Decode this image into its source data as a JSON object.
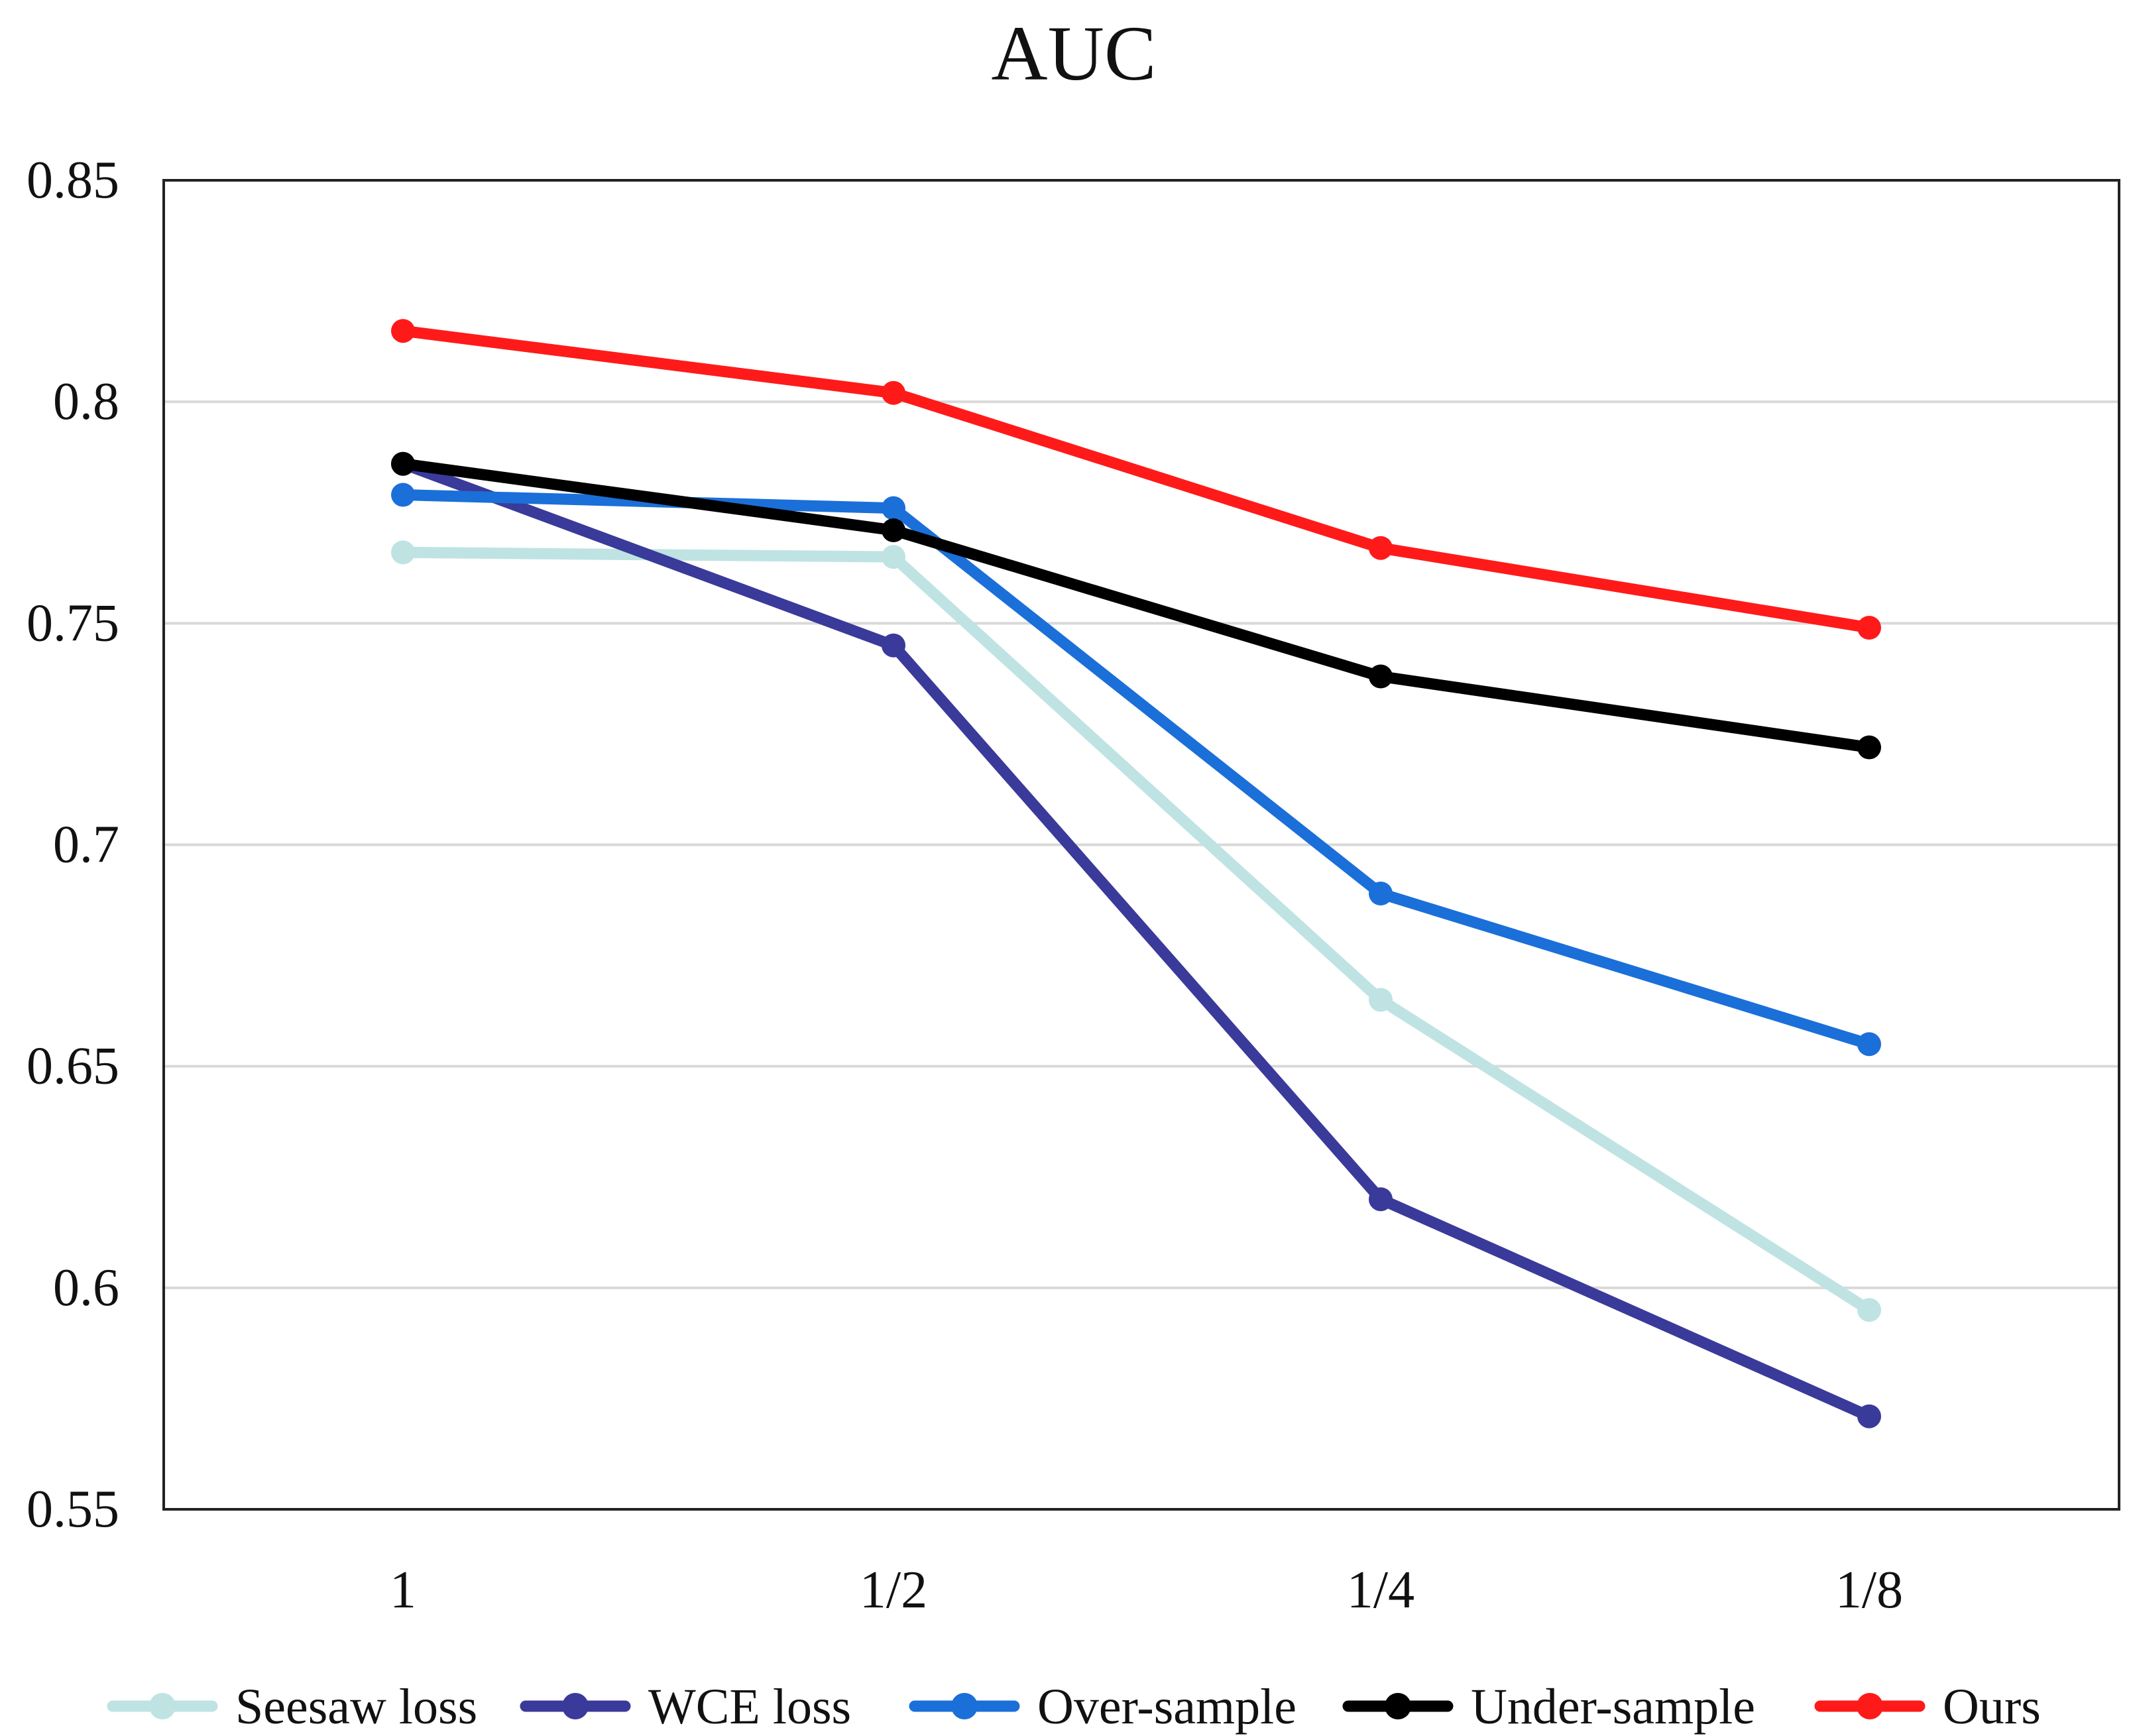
{
  "chart_data": {
    "type": "line",
    "title": "AUC",
    "xlabel": "",
    "ylabel": "",
    "categories": [
      "1",
      "1/2",
      "1/4",
      "1/8"
    ],
    "ylim": [
      0.55,
      0.85
    ],
    "yticks": [
      0.55,
      0.6,
      0.65,
      0.7,
      0.75,
      0.8,
      0.85
    ],
    "ytick_labels": [
      "0.55",
      "0.6",
      "0.65",
      "0.7",
      "0.75",
      "0.8",
      "0.85"
    ],
    "grid": true,
    "legend_position": "bottom",
    "series": [
      {
        "name": "Seesaw loss",
        "color": "#bfe3e3",
        "values": [
          0.766,
          0.765,
          0.665,
          0.595
        ]
      },
      {
        "name": "WCE loss",
        "color": "#3a3a9a",
        "values": [
          0.786,
          0.745,
          0.62,
          0.571
        ]
      },
      {
        "name": "Over-sample",
        "color": "#1b6fd8",
        "values": [
          0.779,
          0.776,
          0.689,
          0.655
        ]
      },
      {
        "name": "Under-sample",
        "color": "#000000",
        "values": [
          0.786,
          0.771,
          0.738,
          0.722
        ]
      },
      {
        "name": "Ours",
        "color": "#ff1a1a",
        "values": [
          0.816,
          0.802,
          0.767,
          0.749
        ]
      }
    ]
  }
}
